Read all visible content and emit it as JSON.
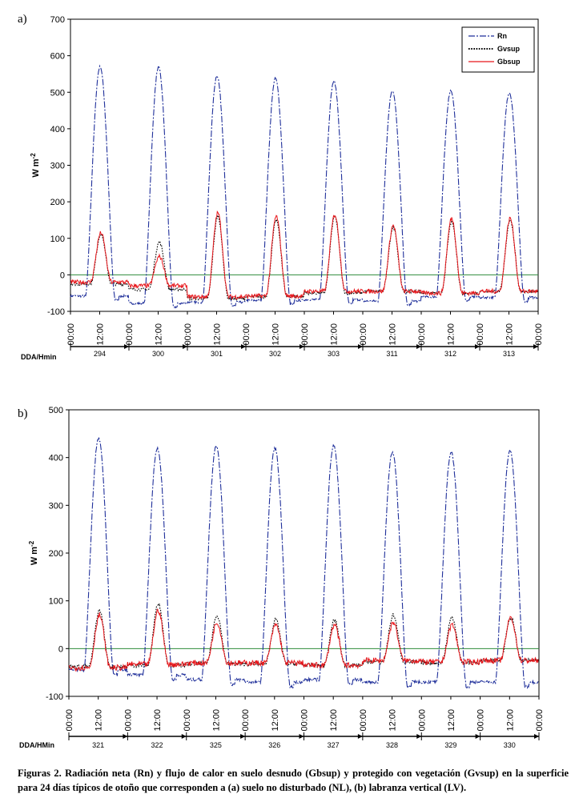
{
  "caption": "Figuras 2. Radiación neta (Rn) y flujo de calor en suelo desnudo (Gbsup) y protegido con vegetación (Gvsup) en la superficie para 24 días típicos de otoño que corresponden a (a) suelo no disturbado (NL), (b) labranza vertical (LV).",
  "colors": {
    "Rn": "#1f2f9a",
    "Gvsup": "#000000",
    "Gbsup": "#e8161b",
    "zero": "#2e8b3a"
  },
  "chart_data": [
    {
      "type": "line",
      "panel_label": "a)",
      "ylabel_main": "W m",
      "ylabel_exp": "-2",
      "ylim": [
        -100,
        700
      ],
      "yticks": [
        -100,
        0,
        100,
        200,
        300,
        400,
        500,
        600,
        700
      ],
      "xtick_labels": [
        "00:00",
        "12:00",
        "00:00",
        "12:00",
        "00:00",
        "12:00",
        "00:00",
        "12:00",
        "00:00",
        "12:00",
        "00:00",
        "12:00",
        "00:00",
        "12:00",
        "00:00",
        "12:00",
        "00:00"
      ],
      "day_axis_label": "DDA/Hmin",
      "days": [
        "294",
        "300",
        "301",
        "302",
        "303",
        "311",
        "312",
        "313"
      ],
      "legend": [
        "Rn",
        "Gvsup",
        "Gbsup"
      ],
      "series": [
        {
          "name": "Rn",
          "peaks": [
            570,
            568,
            545,
            538,
            530,
            505,
            505,
            498
          ],
          "night": [
            -58,
            -78,
            -75,
            -70,
            -68,
            -72,
            -60,
            -62
          ]
        },
        {
          "name": "Gvsup",
          "peaks": [
            112,
            90,
            160,
            150,
            160,
            130,
            145,
            150
          ],
          "night": [
            -25,
            -40,
            -65,
            -60,
            -50,
            -45,
            -50,
            -45
          ]
        },
        {
          "name": "Gbsup",
          "peaks": [
            115,
            50,
            170,
            160,
            165,
            135,
            155,
            155
          ],
          "night": [
            -20,
            -30,
            -60,
            -58,
            -45,
            -45,
            -50,
            -45
          ]
        }
      ]
    },
    {
      "type": "line",
      "panel_label": "b)",
      "ylabel_main": "W m",
      "ylabel_exp": "-2",
      "ylim": [
        -100,
        500
      ],
      "yticks": [
        -100,
        0,
        100,
        200,
        300,
        400,
        500
      ],
      "xtick_labels": [
        "00:00",
        "12:00",
        "00:00",
        "12:00",
        "00:00",
        "12:00",
        "00:00",
        "12:00",
        "00:00",
        "12:00",
        "00:00",
        "12:00",
        "00:00",
        "12:00",
        "00:00",
        "12:00",
        "00:00"
      ],
      "day_axis_label": "DDA/HMin",
      "days": [
        "321",
        "322",
        "325",
        "326",
        "327",
        "328",
        "329",
        "330"
      ],
      "legend": [],
      "series": [
        {
          "name": "Rn",
          "peaks": [
            440,
            420,
            425,
            420,
            425,
            412,
            412,
            415
          ],
          "night": [
            -45,
            -55,
            -65,
            -70,
            -65,
            -70,
            -70,
            -70
          ]
        },
        {
          "name": "Gvsup",
          "peaks": [
            80,
            95,
            70,
            60,
            60,
            70,
            65,
            65
          ],
          "night": [
            -38,
            -35,
            -32,
            -32,
            -35,
            -28,
            -30,
            -25
          ]
        },
        {
          "name": "Gbsup",
          "peaks": [
            70,
            80,
            55,
            50,
            50,
            55,
            50,
            65
          ],
          "night": [
            -40,
            -33,
            -30,
            -30,
            -35,
            -25,
            -28,
            -25
          ]
        }
      ]
    }
  ]
}
